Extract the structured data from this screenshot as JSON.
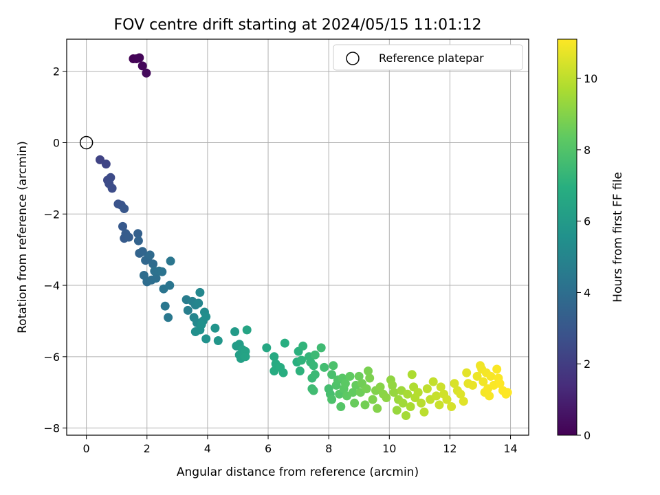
{
  "chart_data": {
    "type": "scatter",
    "title": "FOV centre drift starting at 2024/05/15 11:01:12",
    "xlabel": "Angular distance from reference (arcmin)",
    "ylabel": "Rotation from reference (arcmin)",
    "xlim": [
      -0.65,
      14.6
    ],
    "ylim": [
      -8.2,
      2.9
    ],
    "xticks": [
      0,
      2,
      4,
      6,
      8,
      10,
      12,
      14
    ],
    "yticks": [
      -8,
      -6,
      -4,
      -2,
      0,
      2
    ],
    "xtick_labels": [
      "0",
      "2",
      "4",
      "6",
      "8",
      "10",
      "12",
      "14"
    ],
    "ytick_labels": [
      "−8",
      "−6",
      "−4",
      "−2",
      "0",
      "2"
    ],
    "grid": true,
    "colorbar": {
      "label": "Hours from first FF file",
      "colormap": "viridis",
      "range": [
        0,
        11.1
      ],
      "ticks": [
        0,
        2,
        4,
        6,
        8,
        10
      ],
      "tick_labels": [
        "0",
        "2",
        "4",
        "6",
        "8",
        "10"
      ]
    },
    "legend": {
      "placement": "top-right",
      "entries": [
        {
          "label": "Reference platepar",
          "marker": "open-circle"
        }
      ]
    },
    "reference_point": {
      "x": 0,
      "y": 0
    },
    "series": [
      {
        "points": [
          [
            1.55,
            2.35,
            0.05
          ],
          [
            1.65,
            2.35,
            0.1
          ],
          [
            1.75,
            2.38,
            0.15
          ],
          [
            1.85,
            2.15,
            0.2
          ],
          [
            1.98,
            1.95,
            0.3
          ],
          [
            0.45,
            -0.48,
            2.2
          ],
          [
            0.65,
            -0.6,
            2.3
          ],
          [
            0.7,
            -1.05,
            2.45
          ],
          [
            0.8,
            -0.98,
            2.5
          ],
          [
            0.75,
            -1.15,
            2.55
          ],
          [
            0.85,
            -1.28,
            2.6
          ],
          [
            1.05,
            -1.72,
            2.8
          ],
          [
            1.15,
            -1.75,
            2.85
          ],
          [
            1.25,
            -1.85,
            3.0
          ],
          [
            1.2,
            -2.35,
            3.1
          ],
          [
            1.25,
            -2.68,
            3.15
          ],
          [
            1.3,
            -2.55,
            3.2
          ],
          [
            1.4,
            -2.65,
            3.25
          ],
          [
            1.7,
            -2.55,
            3.4
          ],
          [
            1.72,
            -2.75,
            3.5
          ],
          [
            1.75,
            -3.1,
            3.55
          ],
          [
            1.85,
            -3.05,
            3.6
          ],
          [
            1.95,
            -3.3,
            3.7
          ],
          [
            2.05,
            -3.2,
            3.75
          ],
          [
            2.1,
            -3.15,
            3.8
          ],
          [
            2.2,
            -3.4,
            3.85
          ],
          [
            1.9,
            -3.72,
            3.9
          ],
          [
            2.0,
            -3.9,
            3.95
          ],
          [
            2.15,
            -3.85,
            4.0
          ],
          [
            2.3,
            -3.8,
            4.05
          ],
          [
            2.25,
            -3.6,
            4.1
          ],
          [
            2.4,
            -3.6,
            4.15
          ],
          [
            2.5,
            -3.62,
            4.2
          ],
          [
            2.55,
            -4.1,
            4.25
          ],
          [
            2.75,
            -4.0,
            4.3
          ],
          [
            2.78,
            -3.32,
            4.35
          ],
          [
            2.6,
            -4.58,
            4.4
          ],
          [
            2.7,
            -4.9,
            4.45
          ],
          [
            3.3,
            -4.4,
            4.6
          ],
          [
            3.35,
            -4.7,
            4.7
          ],
          [
            3.5,
            -4.45,
            4.8
          ],
          [
            3.6,
            -4.55,
            4.9
          ],
          [
            3.55,
            -4.9,
            5.0
          ],
          [
            3.7,
            -4.5,
            5.0
          ],
          [
            3.75,
            -4.2,
            5.1
          ],
          [
            3.65,
            -5.05,
            5.2
          ],
          [
            3.9,
            -4.75,
            5.3
          ],
          [
            3.85,
            -5.0,
            5.35
          ],
          [
            3.95,
            -4.88,
            5.4
          ],
          [
            3.6,
            -5.3,
            5.45
          ],
          [
            3.75,
            -5.25,
            5.5
          ],
          [
            3.8,
            -5.1,
            5.55
          ],
          [
            3.95,
            -5.5,
            5.6
          ],
          [
            4.25,
            -5.2,
            5.7
          ],
          [
            4.35,
            -5.55,
            5.8
          ],
          [
            4.9,
            -5.3,
            6.0
          ],
          [
            4.95,
            -5.7,
            6.05
          ],
          [
            5.05,
            -5.65,
            6.1
          ],
          [
            5.05,
            -5.95,
            6.15
          ],
          [
            5.1,
            -6.05,
            6.2
          ],
          [
            5.15,
            -5.8,
            6.25
          ],
          [
            5.2,
            -5.95,
            6.3
          ],
          [
            5.25,
            -5.85,
            6.35
          ],
          [
            5.25,
            -6.0,
            6.4
          ],
          [
            5.3,
            -5.25,
            6.45
          ],
          [
            5.95,
            -5.75,
            6.6
          ],
          [
            6.2,
            -6.0,
            6.7
          ],
          [
            6.25,
            -6.2,
            6.75
          ],
          [
            6.2,
            -6.4,
            6.8
          ],
          [
            6.4,
            -6.3,
            6.85
          ],
          [
            6.5,
            -6.45,
            6.9
          ],
          [
            6.55,
            -5.62,
            6.95
          ],
          [
            6.95,
            -6.15,
            7.0
          ],
          [
            7.0,
            -5.85,
            7.05
          ],
          [
            7.05,
            -6.4,
            7.1
          ],
          [
            7.1,
            -6.1,
            7.15
          ],
          [
            7.15,
            -5.7,
            7.2
          ],
          [
            7.35,
            -6.0,
            7.25
          ],
          [
            7.4,
            -6.15,
            7.3
          ],
          [
            7.5,
            -6.25,
            7.35
          ],
          [
            7.45,
            -6.6,
            7.4
          ],
          [
            7.55,
            -6.5,
            7.45
          ],
          [
            7.55,
            -5.95,
            7.5
          ],
          [
            7.45,
            -6.9,
            7.5
          ],
          [
            7.75,
            -5.75,
            7.55
          ],
          [
            7.5,
            -6.95,
            7.6
          ],
          [
            7.85,
            -6.3,
            7.65
          ],
          [
            8.0,
            -6.9,
            7.7
          ],
          [
            8.05,
            -7.05,
            7.75
          ],
          [
            8.1,
            -6.5,
            7.8
          ],
          [
            8.15,
            -6.25,
            7.85
          ],
          [
            8.1,
            -7.2,
            7.9
          ],
          [
            8.25,
            -6.8,
            7.95
          ],
          [
            8.3,
            -6.65,
            8.0
          ],
          [
            8.35,
            -7.05,
            8.05
          ],
          [
            8.4,
            -7.4,
            8.1
          ],
          [
            8.45,
            -6.6,
            8.15
          ],
          [
            8.5,
            -6.9,
            8.2
          ],
          [
            8.55,
            -6.75,
            8.25
          ],
          [
            8.6,
            -7.1,
            8.3
          ],
          [
            8.7,
            -6.55,
            8.35
          ],
          [
            8.8,
            -7.0,
            8.4
          ],
          [
            8.9,
            -6.8,
            8.45
          ],
          [
            8.85,
            -7.3,
            8.5
          ],
          [
            9.0,
            -6.55,
            8.55
          ],
          [
            9.05,
            -7.0,
            8.6
          ],
          [
            9.1,
            -6.75,
            8.65
          ],
          [
            9.2,
            -7.35,
            8.7
          ],
          [
            9.25,
            -6.9,
            8.75
          ],
          [
            9.3,
            -6.4,
            8.8
          ],
          [
            9.35,
            -6.6,
            8.85
          ],
          [
            9.45,
            -7.2,
            8.9
          ],
          [
            9.55,
            -6.95,
            8.95
          ],
          [
            9.6,
            -7.45,
            9.0
          ],
          [
            9.7,
            -6.85,
            9.05
          ],
          [
            9.8,
            -7.05,
            9.1
          ],
          [
            9.9,
            -7.15,
            9.15
          ],
          [
            10.05,
            -6.65,
            9.2
          ],
          [
            10.1,
            -6.8,
            9.25
          ],
          [
            10.15,
            -7.0,
            9.3
          ],
          [
            10.25,
            -7.5,
            9.35
          ],
          [
            10.3,
            -7.2,
            9.4
          ],
          [
            10.4,
            -6.95,
            9.45
          ],
          [
            10.45,
            -7.3,
            9.5
          ],
          [
            10.55,
            -7.65,
            9.55
          ],
          [
            10.6,
            -7.05,
            9.6
          ],
          [
            10.7,
            -7.4,
            9.65
          ],
          [
            10.75,
            -6.5,
            9.7
          ],
          [
            10.8,
            -6.85,
            9.75
          ],
          [
            10.85,
            -7.15,
            9.8
          ],
          [
            10.95,
            -7.0,
            9.85
          ],
          [
            11.05,
            -7.3,
            9.9
          ],
          [
            11.15,
            -7.55,
            9.95
          ],
          [
            11.25,
            -6.9,
            10.0
          ],
          [
            11.35,
            -7.2,
            10.05
          ],
          [
            11.45,
            -6.7,
            10.1
          ],
          [
            11.55,
            -7.1,
            10.15
          ],
          [
            11.65,
            -7.35,
            10.2
          ],
          [
            11.7,
            -6.85,
            10.25
          ],
          [
            11.8,
            -7.05,
            10.3
          ],
          [
            11.9,
            -7.2,
            10.35
          ],
          [
            12.05,
            -7.4,
            10.4
          ],
          [
            12.15,
            -6.75,
            10.45
          ],
          [
            12.25,
            -6.95,
            10.5
          ],
          [
            12.35,
            -7.05,
            10.55
          ],
          [
            12.45,
            -7.25,
            10.6
          ],
          [
            12.55,
            -6.45,
            10.65
          ],
          [
            12.6,
            -6.75,
            10.7
          ],
          [
            12.75,
            -6.8,
            10.75
          ],
          [
            12.9,
            -6.55,
            10.8
          ],
          [
            13.0,
            -6.25,
            10.85
          ],
          [
            13.05,
            -6.35,
            10.9
          ],
          [
            13.1,
            -6.7,
            10.9
          ],
          [
            13.15,
            -7.0,
            10.95
          ],
          [
            13.2,
            -6.45,
            10.95
          ],
          [
            13.25,
            -6.9,
            11.0
          ],
          [
            13.3,
            -7.1,
            11.0
          ],
          [
            13.35,
            -6.55,
            11.0
          ],
          [
            13.45,
            -6.8,
            11.05
          ],
          [
            13.55,
            -6.35,
            11.05
          ],
          [
            13.6,
            -6.6,
            11.05
          ],
          [
            13.65,
            -6.75,
            11.1
          ],
          [
            13.75,
            -6.95,
            11.1
          ],
          [
            13.85,
            -7.05,
            11.1
          ],
          [
            13.9,
            -7.0,
            11.1
          ]
        ]
      }
    ]
  }
}
